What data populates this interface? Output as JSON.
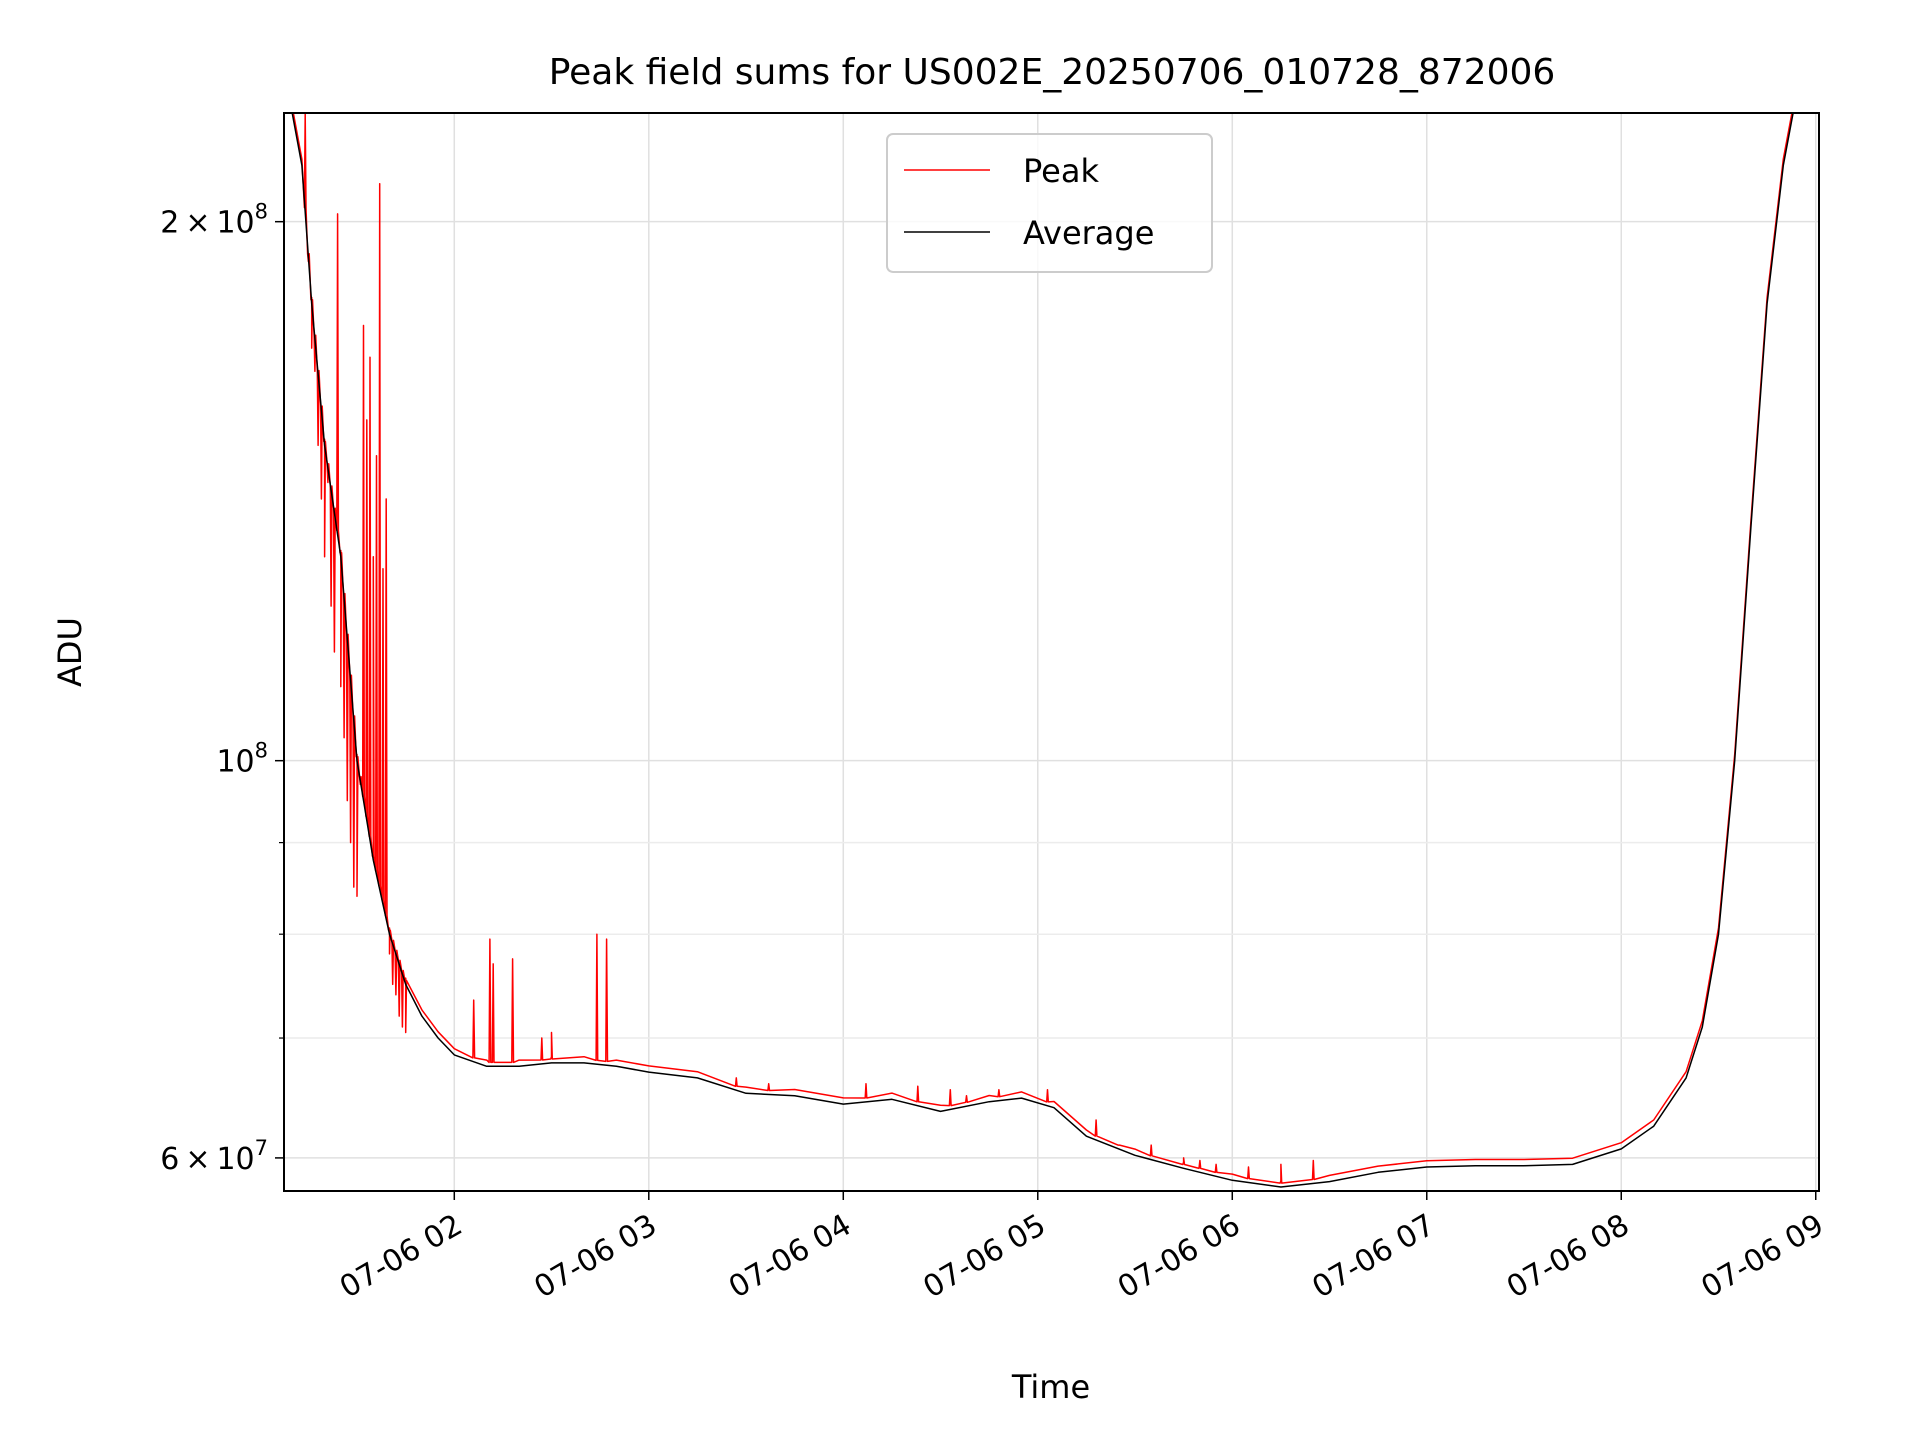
{
  "chart_data": {
    "type": "line",
    "title": "Peak field sums for US002E_20250706_010728_872006",
    "xlabel": "Time",
    "ylabel": "ADU",
    "y_scale": "log",
    "ylim": [
      57500000,
      230000000
    ],
    "xlim": [
      "2025-07-06 01:07:28",
      "2025-07-06 09:01:00"
    ],
    "x_ticks": [
      "2025-07-06 02:00",
      "2025-07-06 03:00",
      "2025-07-06 04:00",
      "2025-07-06 05:00",
      "2025-07-06 06:00",
      "2025-07-06 07:00",
      "2025-07-06 08:00",
      "2025-07-06 09:00"
    ],
    "x_tick_labels": [
      "07-06 02",
      "07-06 03",
      "07-06 04",
      "07-06 05",
      "07-06 06",
      "07-06 07",
      "07-06 08",
      "07-06 09"
    ],
    "y_major_ticks": [
      {
        "value": 60000000,
        "mantissa": "6",
        "exponent": "7"
      },
      {
        "value": 100000000,
        "mantissa": "",
        "exponent": "8"
      },
      {
        "value": 200000000,
        "mantissa": "2",
        "exponent": "8"
      }
    ],
    "y_tick_base": "10",
    "y_tick_times": "×",
    "y_minor_ticks": [
      70000000,
      80000000,
      90000000
    ],
    "grid": true,
    "legend_position": "top-center",
    "series": [
      {
        "name": "Average",
        "color": "#000000",
        "x": [
          "2025-07-06 01:07:28",
          "2025-07-06 01:10",
          "2025-07-06 01:13",
          "2025-07-06 01:16",
          "2025-07-06 01:20",
          "2025-07-06 01:25",
          "2025-07-06 01:30",
          "2025-07-06 01:35",
          "2025-07-06 01:40",
          "2025-07-06 01:45",
          "2025-07-06 01:50",
          "2025-07-06 01:55",
          "2025-07-06 02:00",
          "2025-07-06 02:10",
          "2025-07-06 02:20",
          "2025-07-06 02:30",
          "2025-07-06 02:40",
          "2025-07-06 02:50",
          "2025-07-06 03:00",
          "2025-07-06 03:15",
          "2025-07-06 03:30",
          "2025-07-06 03:45",
          "2025-07-06 04:00",
          "2025-07-06 04:15",
          "2025-07-06 04:30",
          "2025-07-06 04:45",
          "2025-07-06 04:55",
          "2025-07-06 05:05",
          "2025-07-06 05:15",
          "2025-07-06 05:30",
          "2025-07-06 05:45",
          "2025-07-06 06:00",
          "2025-07-06 06:15",
          "2025-07-06 06:30",
          "2025-07-06 06:45",
          "2025-07-06 07:00",
          "2025-07-06 07:15",
          "2025-07-06 07:30",
          "2025-07-06 07:45",
          "2025-07-06 08:00",
          "2025-07-06 08:10",
          "2025-07-06 08:20",
          "2025-07-06 08:25",
          "2025-07-06 08:30",
          "2025-07-06 08:35",
          "2025-07-06 08:40",
          "2025-07-06 08:45",
          "2025-07-06 08:50",
          "2025-07-06 08:53"
        ],
        "values": [
          230000000,
          230000000,
          215000000,
          180000000,
          150000000,
          130000000,
          100000000,
          88000000,
          80000000,
          75000000,
          72000000,
          70000000,
          68500000,
          67500000,
          67500000,
          67800000,
          67800000,
          67500000,
          67000000,
          66500000,
          65200000,
          65000000,
          64300000,
          64700000,
          63700000,
          64500000,
          64800000,
          64000000,
          61700000,
          60200000,
          59200000,
          58300000,
          57800000,
          58200000,
          58900000,
          59300000,
          59400000,
          59400000,
          59500000,
          60700000,
          62500000,
          66500000,
          71000000,
          80000000,
          100000000,
          135000000,
          180000000,
          215000000,
          230000000
        ]
      },
      {
        "name": "Peak",
        "color": "#ff0000",
        "x": [
          "2025-07-06 01:14",
          "2025-07-06 01:15",
          "2025-07-06 01:16",
          "2025-07-06 01:17",
          "2025-07-06 01:18",
          "2025-07-06 01:19",
          "2025-07-06 01:20",
          "2025-07-06 01:21",
          "2025-07-06 01:22",
          "2025-07-06 01:23",
          "2025-07-06 01:24",
          "2025-07-06 01:25",
          "2025-07-06 01:26",
          "2025-07-06 01:27",
          "2025-07-06 01:28",
          "2025-07-06 01:29",
          "2025-07-06 01:30",
          "2025-07-06 01:31",
          "2025-07-06 01:32",
          "2025-07-06 01:33",
          "2025-07-06 01:34",
          "2025-07-06 01:35",
          "2025-07-06 01:36",
          "2025-07-06 01:37",
          "2025-07-06 01:38",
          "2025-07-06 01:39",
          "2025-07-06 01:40",
          "2025-07-06 01:41",
          "2025-07-06 01:42",
          "2025-07-06 01:43",
          "2025-07-06 01:44",
          "2025-07-06 01:45",
          "2025-07-06 02:06",
          "2025-07-06 02:11",
          "2025-07-06 02:12",
          "2025-07-06 02:18",
          "2025-07-06 02:27",
          "2025-07-06 02:30",
          "2025-07-06 02:44",
          "2025-07-06 02:47",
          "2025-07-06 03:27",
          "2025-07-06 03:37",
          "2025-07-06 04:07",
          "2025-07-06 04:23",
          "2025-07-06 04:33",
          "2025-07-06 04:38",
          "2025-07-06 04:48",
          "2025-07-06 05:03",
          "2025-07-06 05:18",
          "2025-07-06 05:25",
          "2025-07-06 05:35",
          "2025-07-06 05:45",
          "2025-07-06 05:50",
          "2025-07-06 05:55",
          "2025-07-06 06:05",
          "2025-07-06 06:15",
          "2025-07-06 06:25"
        ],
        "values": [
          230000000,
          190000000,
          170000000,
          165000000,
          150000000,
          140000000,
          130000000,
          143000000,
          122000000,
          115000000,
          202000000,
          110000000,
          103000000,
          95000000,
          90000000,
          85000000,
          84000000,
          97000000,
          175000000,
          155000000,
          168000000,
          130000000,
          148000000,
          210000000,
          128000000,
          140000000,
          78000000,
          75000000,
          74000000,
          72000000,
          71000000,
          70500000,
          73500000,
          79500000,
          77000000,
          77500000,
          70000000,
          70500000,
          80000000,
          79500000,
          66500000,
          66000000,
          66000000,
          65800000,
          65500000,
          65000000,
          65500000,
          65500000,
          63000000,
          61000000,
          61000000,
          60000000,
          59800000,
          59500000,
          59300000,
          59500000,
          59800000
        ]
      }
    ]
  }
}
